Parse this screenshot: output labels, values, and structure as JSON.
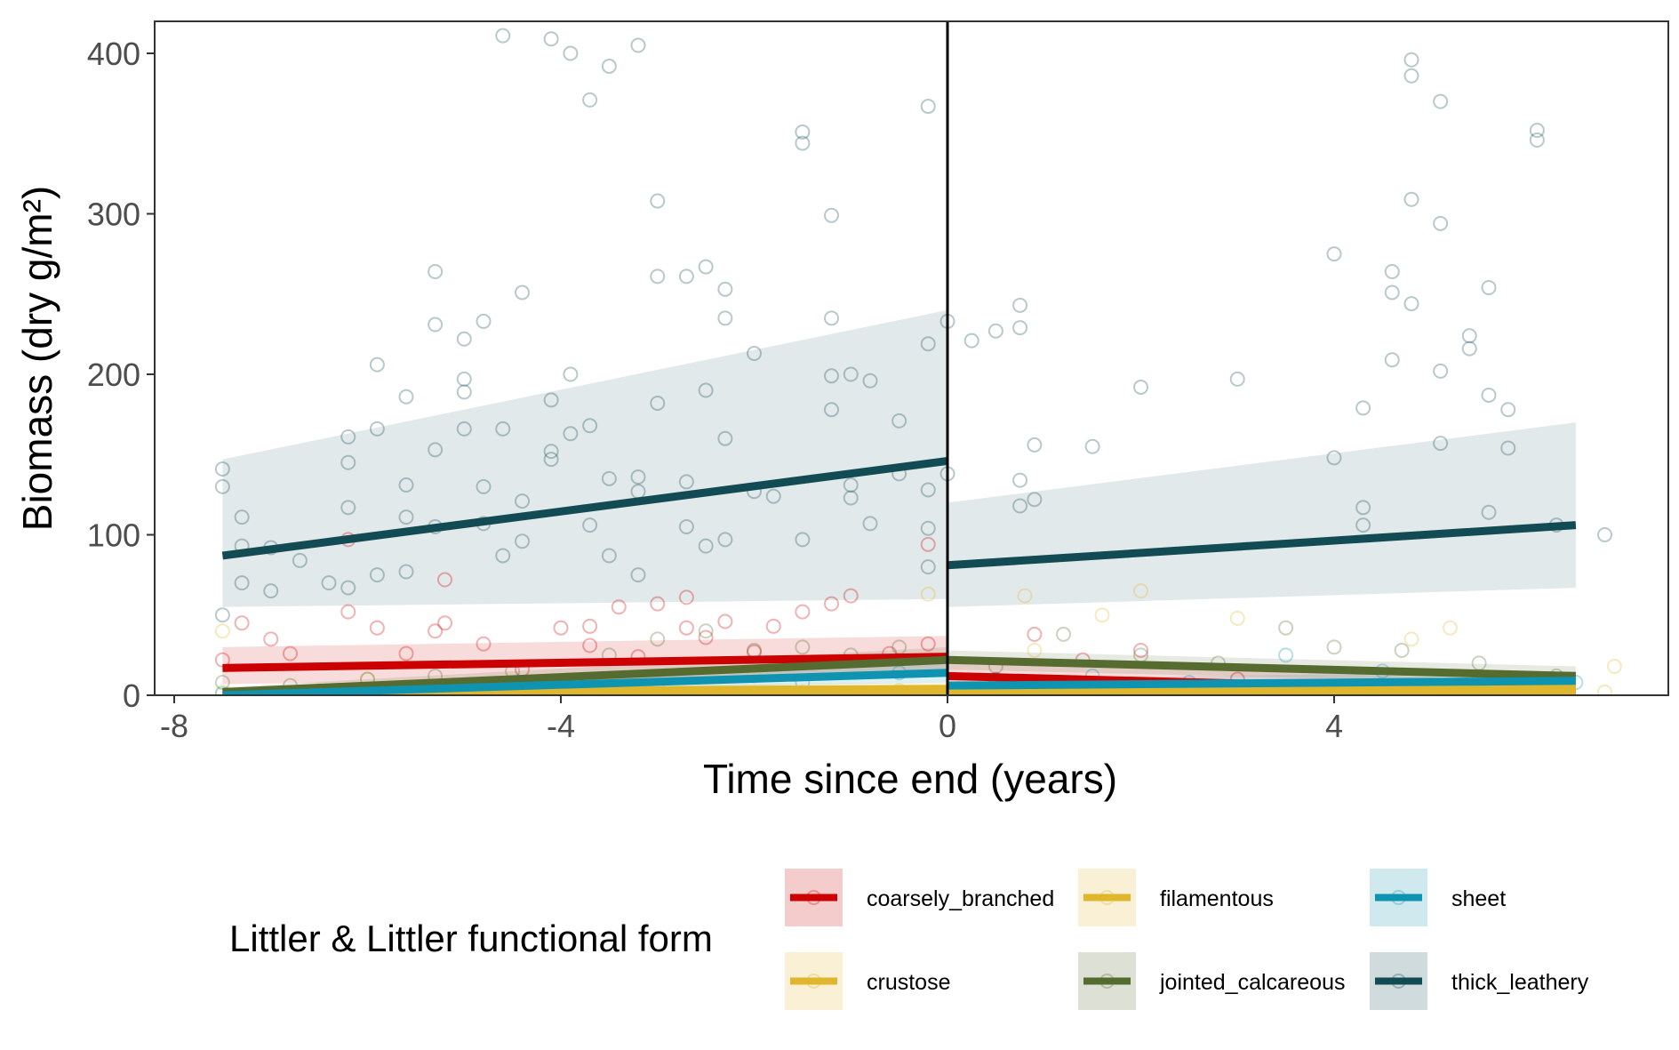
{
  "chart_data": {
    "type": "scatter",
    "xlabel": "Time since end (years)",
    "ylabel": "Biomass (dry g/m²)",
    "xlim": [
      -8.0,
      7.5
    ],
    "ylim": [
      0,
      420
    ],
    "x_ticks": [
      -8,
      -4,
      0,
      4
    ],
    "y_ticks": [
      0,
      100,
      200,
      300,
      400
    ],
    "x_tick_labels": [
      "-8",
      "-4",
      "0",
      "4"
    ],
    "y_tick_labels": [
      "0",
      "100",
      "200",
      "300",
      "400"
    ],
    "grid": false,
    "vline_x": 0,
    "legend": {
      "title": "Littler & Littler functional form",
      "placement": "bottom"
    },
    "series": [
      {
        "name": "coarsely_branched",
        "color": "#CC0000",
        "fit_before": {
          "x": [
            -7.5,
            0
          ],
          "y": [
            17,
            24
          ],
          "ci_low": [
            7,
            12
          ],
          "ci_high": [
            30,
            37
          ]
        },
        "fit_after": {
          "x": [
            0,
            6.5
          ],
          "y": [
            12,
            2
          ],
          "ci_low": [
            4,
            0
          ],
          "ci_high": [
            22,
            8
          ]
        },
        "points": [
          [
            -7.5,
            22
          ],
          [
            -7.3,
            45
          ],
          [
            -7.0,
            35
          ],
          [
            -6.8,
            26
          ],
          [
            -6.2,
            97
          ],
          [
            -6.2,
            52
          ],
          [
            -5.9,
            42
          ],
          [
            -5.6,
            26
          ],
          [
            -5.3,
            40
          ],
          [
            -5.2,
            45
          ],
          [
            -5.2,
            72
          ],
          [
            -4.8,
            32
          ],
          [
            -4.4,
            16
          ],
          [
            -4.0,
            42
          ],
          [
            -3.7,
            43
          ],
          [
            -3.7,
            31
          ],
          [
            -3.4,
            55
          ],
          [
            -3.2,
            24
          ],
          [
            -3.0,
            57
          ],
          [
            -2.7,
            61
          ],
          [
            -2.7,
            42
          ],
          [
            -2.5,
            36
          ],
          [
            -2.3,
            46
          ],
          [
            -2.0,
            27
          ],
          [
            -1.8,
            43
          ],
          [
            -1.5,
            52
          ],
          [
            -1.2,
            57
          ],
          [
            -1.0,
            62
          ],
          [
            -0.6,
            26
          ],
          [
            -0.2,
            94
          ],
          [
            -0.2,
            32
          ],
          [
            0.5,
            10
          ],
          [
            0.9,
            38
          ],
          [
            1.4,
            22
          ],
          [
            2.0,
            28
          ],
          [
            3.0,
            10
          ]
        ]
      },
      {
        "name": "crustose",
        "color": "#E0B62C",
        "fit_before": {
          "x": [
            -7.5,
            0
          ],
          "y": [
            1,
            3
          ],
          "ci_low": [
            0,
            0
          ],
          "ci_high": [
            3,
            6
          ]
        },
        "fit_after": {
          "x": [
            0,
            6.5
          ],
          "y": [
            3,
            3
          ],
          "ci_low": [
            1,
            1
          ],
          "ci_high": [
            6,
            6
          ]
        },
        "points": [
          [
            -7.5,
            2
          ],
          [
            -6.5,
            3
          ],
          [
            -5.5,
            1
          ],
          [
            -4.5,
            2
          ],
          [
            -3.5,
            3
          ],
          [
            -2.5,
            1
          ],
          [
            -1.5,
            2
          ],
          [
            -0.5,
            3
          ],
          [
            0.5,
            2
          ],
          [
            1.5,
            3
          ],
          [
            2.5,
            1
          ],
          [
            3.5,
            2
          ],
          [
            4.5,
            3
          ],
          [
            5.5,
            2
          ],
          [
            6.8,
            2
          ]
        ]
      },
      {
        "name": "filamentous",
        "color": "#E0B62C",
        "fit_before": {
          "x": [
            -7.5,
            0
          ],
          "y": [
            2,
            4
          ],
          "ci_low": [
            0,
            1
          ],
          "ci_high": [
            5,
            8
          ]
        },
        "fit_after": {
          "x": [
            0,
            6.5
          ],
          "y": [
            4,
            5
          ],
          "ci_low": [
            1,
            1
          ],
          "ci_high": [
            8,
            10
          ]
        },
        "points": [
          [
            -7.5,
            40
          ],
          [
            -6.0,
            10
          ],
          [
            -4.0,
            8
          ],
          [
            -2.0,
            12
          ],
          [
            -0.2,
            63
          ],
          [
            0.8,
            62
          ],
          [
            0.9,
            28
          ],
          [
            1.6,
            50
          ],
          [
            2.0,
            65
          ],
          [
            3.0,
            48
          ],
          [
            4.8,
            35
          ],
          [
            5.2,
            42
          ],
          [
            6.9,
            18
          ]
        ]
      },
      {
        "name": "jointed_calcareous",
        "color": "#556B2F",
        "fit_before": {
          "x": [
            -7.5,
            0
          ],
          "y": [
            2,
            22
          ],
          "ci_low": [
            0,
            14
          ],
          "ci_high": [
            5,
            30
          ]
        },
        "fit_after": {
          "x": [
            0,
            6.5
          ],
          "y": [
            22,
            12
          ],
          "ci_low": [
            16,
            7
          ],
          "ci_high": [
            28,
            18
          ]
        },
        "points": [
          [
            -7.5,
            8
          ],
          [
            -6.8,
            6
          ],
          [
            -6.0,
            10
          ],
          [
            -5.3,
            12
          ],
          [
            -4.5,
            15
          ],
          [
            -3.5,
            25
          ],
          [
            -3.0,
            35
          ],
          [
            -2.5,
            40
          ],
          [
            -2.0,
            28
          ],
          [
            -1.5,
            30
          ],
          [
            -1.0,
            25
          ],
          [
            -0.5,
            30
          ],
          [
            0.5,
            18
          ],
          [
            1.2,
            38
          ],
          [
            2.0,
            25
          ],
          [
            2.8,
            20
          ],
          [
            3.5,
            42
          ],
          [
            4.0,
            30
          ],
          [
            4.7,
            28
          ],
          [
            5.5,
            20
          ],
          [
            6.3,
            12
          ]
        ]
      },
      {
        "name": "sheet",
        "color": "#0E93B0",
        "fit_before": {
          "x": [
            -7.5,
            0
          ],
          "y": [
            0,
            14
          ],
          "ci_low": [
            0,
            8
          ],
          "ci_high": [
            2,
            22
          ]
        },
        "fit_after": {
          "x": [
            0,
            6.5
          ],
          "y": [
            6,
            9
          ],
          "ci_low": [
            2,
            4
          ],
          "ci_high": [
            10,
            15
          ]
        },
        "points": [
          [
            -7.5,
            1
          ],
          [
            -6.0,
            2
          ],
          [
            -4.5,
            3
          ],
          [
            -3.0,
            5
          ],
          [
            -1.5,
            8
          ],
          [
            -0.5,
            14
          ],
          [
            0.5,
            10
          ],
          [
            1.5,
            12
          ],
          [
            2.5,
            8
          ],
          [
            3.5,
            25
          ],
          [
            4.5,
            15
          ],
          [
            5.5,
            10
          ],
          [
            6.5,
            8
          ]
        ]
      },
      {
        "name": "thick_leathery",
        "color": "#134B55",
        "fit_before": {
          "x": [
            -7.5,
            0
          ],
          "y": [
            87,
            146
          ],
          "ci_low": [
            55,
            60
          ],
          "ci_high": [
            147,
            240
          ]
        },
        "fit_after": {
          "x": [
            0,
            6.5
          ],
          "y": [
            81,
            106
          ],
          "ci_low": [
            55,
            67
          ],
          "ci_high": [
            120,
            170
          ]
        },
        "points": [
          [
            -7.5,
            141
          ],
          [
            -7.5,
            130
          ],
          [
            -7.5,
            50
          ],
          [
            -7.3,
            111
          ],
          [
            -7.3,
            93
          ],
          [
            -7.3,
            70
          ],
          [
            -7.0,
            92
          ],
          [
            -7.0,
            65
          ],
          [
            -6.7,
            84
          ],
          [
            -6.4,
            70
          ],
          [
            -6.2,
            161
          ],
          [
            -6.2,
            145
          ],
          [
            -6.2,
            117
          ],
          [
            -6.2,
            67
          ],
          [
            -5.9,
            206
          ],
          [
            -5.9,
            166
          ],
          [
            -5.9,
            75
          ],
          [
            -5.6,
            186
          ],
          [
            -5.6,
            131
          ],
          [
            -5.6,
            111
          ],
          [
            -5.6,
            77
          ],
          [
            -5.3,
            264
          ],
          [
            -5.3,
            231
          ],
          [
            -5.3,
            153
          ],
          [
            -5.3,
            105
          ],
          [
            -5.0,
            222
          ],
          [
            -5.0,
            197
          ],
          [
            -5.0,
            189
          ],
          [
            -5.0,
            166
          ],
          [
            -4.8,
            233
          ],
          [
            -4.8,
            130
          ],
          [
            -4.8,
            107
          ],
          [
            -4.6,
            411
          ],
          [
            -4.6,
            166
          ],
          [
            -4.6,
            87
          ],
          [
            -4.4,
            251
          ],
          [
            -4.4,
            121
          ],
          [
            -4.4,
            96
          ],
          [
            -4.1,
            409
          ],
          [
            -4.1,
            184
          ],
          [
            -4.1,
            152
          ],
          [
            -4.1,
            147
          ],
          [
            -3.9,
            400
          ],
          [
            -3.9,
            200
          ],
          [
            -3.9,
            163
          ],
          [
            -3.7,
            371
          ],
          [
            -3.7,
            168
          ],
          [
            -3.7,
            106
          ],
          [
            -3.5,
            392
          ],
          [
            -3.5,
            135
          ],
          [
            -3.5,
            87
          ],
          [
            -3.2,
            405
          ],
          [
            -3.2,
            136
          ],
          [
            -3.2,
            127
          ],
          [
            -3.2,
            75
          ],
          [
            -3.0,
            308
          ],
          [
            -3.0,
            261
          ],
          [
            -3.0,
            182
          ],
          [
            -2.7,
            261
          ],
          [
            -2.7,
            133
          ],
          [
            -2.7,
            105
          ],
          [
            -2.5,
            267
          ],
          [
            -2.5,
            190
          ],
          [
            -2.5,
            93
          ],
          [
            -2.3,
            253
          ],
          [
            -2.3,
            235
          ],
          [
            -2.3,
            160
          ],
          [
            -2.3,
            97
          ],
          [
            -2.0,
            213
          ],
          [
            -2.0,
            127
          ],
          [
            -1.8,
            124
          ],
          [
            -1.5,
            351
          ],
          [
            -1.5,
            344
          ],
          [
            -1.5,
            97
          ],
          [
            -1.2,
            299
          ],
          [
            -1.2,
            235
          ],
          [
            -1.2,
            199
          ],
          [
            -1.2,
            178
          ],
          [
            -1.0,
            200
          ],
          [
            -1.0,
            131
          ],
          [
            -1.0,
            123
          ],
          [
            -0.8,
            196
          ],
          [
            -0.8,
            107
          ],
          [
            -0.5,
            171
          ],
          [
            -0.5,
            138
          ],
          [
            -0.2,
            367
          ],
          [
            -0.2,
            219
          ],
          [
            -0.2,
            128
          ],
          [
            -0.2,
            104
          ],
          [
            -0.2,
            80
          ],
          [
            0.0,
            233
          ],
          [
            0.0,
            138
          ],
          [
            0.25,
            221
          ],
          [
            0.5,
            227
          ],
          [
            0.75,
            243
          ],
          [
            0.75,
            229
          ],
          [
            0.75,
            134
          ],
          [
            0.75,
            118
          ],
          [
            0.9,
            156
          ],
          [
            0.9,
            122
          ],
          [
            1.5,
            155
          ],
          [
            2.0,
            192
          ],
          [
            3.0,
            197
          ],
          [
            4.0,
            275
          ],
          [
            4.0,
            148
          ],
          [
            4.3,
            179
          ],
          [
            4.3,
            117
          ],
          [
            4.3,
            106
          ],
          [
            4.6,
            264
          ],
          [
            4.6,
            251
          ],
          [
            4.6,
            209
          ],
          [
            4.8,
            396
          ],
          [
            4.8,
            386
          ],
          [
            4.8,
            309
          ],
          [
            4.8,
            244
          ],
          [
            5.1,
            370
          ],
          [
            5.1,
            294
          ],
          [
            5.1,
            202
          ],
          [
            5.1,
            157
          ],
          [
            5.4,
            224
          ],
          [
            5.4,
            216
          ],
          [
            5.6,
            254
          ],
          [
            5.6,
            187
          ],
          [
            5.6,
            114
          ],
          [
            5.8,
            178
          ],
          [
            5.8,
            154
          ],
          [
            6.1,
            352
          ],
          [
            6.1,
            346
          ],
          [
            6.3,
            106
          ],
          [
            6.8,
            100
          ]
        ]
      }
    ]
  }
}
